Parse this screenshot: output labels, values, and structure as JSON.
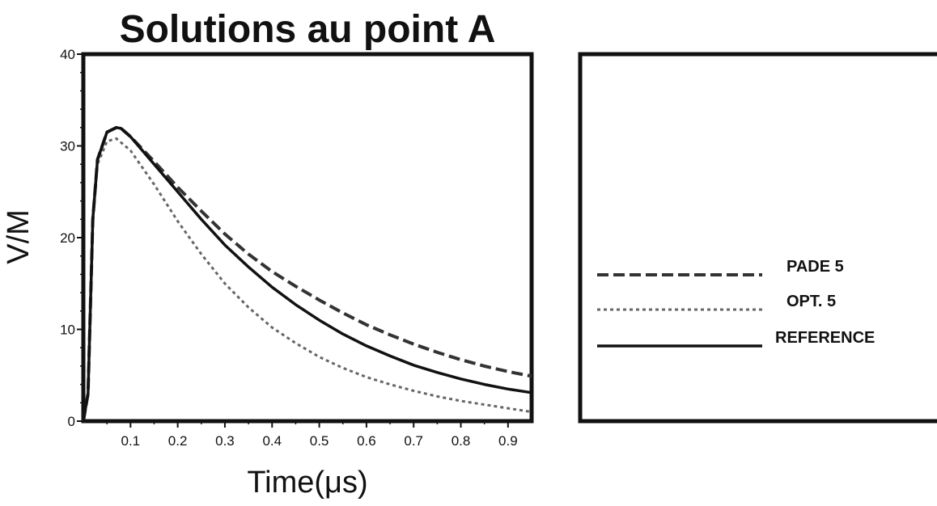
{
  "chart_data": {
    "type": "line",
    "title": "Solutions au point A",
    "xlabel": "Time(μs)",
    "ylabel": "V/M",
    "xlim": [
      0.0,
      0.95
    ],
    "ylim": [
      0,
      40
    ],
    "x_ticks": [
      0.1,
      0.2,
      0.3,
      0.4,
      0.5,
      0.6,
      0.7,
      0.8,
      0.9
    ],
    "x_tick_labels": [
      "0.1",
      "0.2",
      "0.3",
      "0.4",
      "0.5",
      "0.6",
      "0.7",
      "0.8",
      "0.9"
    ],
    "y_ticks": [
      0,
      10,
      20,
      30,
      40
    ],
    "y_tick_labels": [
      "0",
      "10",
      "20",
      "30",
      "40"
    ],
    "grid": false,
    "legend_position": "separate panel, right",
    "series": [
      {
        "name": "PADE 5",
        "style": "dashed",
        "x": [
          0.0,
          0.01,
          0.02,
          0.03,
          0.05,
          0.07,
          0.08,
          0.1,
          0.15,
          0.2,
          0.25,
          0.3,
          0.35,
          0.4,
          0.45,
          0.5,
          0.55,
          0.6,
          0.65,
          0.7,
          0.75,
          0.8,
          0.85,
          0.9,
          0.95
        ],
        "y": [
          0.0,
          3.0,
          22.0,
          28.5,
          31.5,
          32.0,
          31.9,
          31.0,
          28.3,
          25.5,
          22.9,
          20.4,
          18.2,
          16.3,
          14.7,
          13.2,
          11.8,
          10.5,
          9.4,
          8.4,
          7.5,
          6.7,
          6.0,
          5.4,
          4.9
        ]
      },
      {
        "name": "OPT. 5",
        "style": "dotted",
        "x": [
          0.0,
          0.01,
          0.02,
          0.03,
          0.05,
          0.07,
          0.1,
          0.15,
          0.2,
          0.25,
          0.3,
          0.35,
          0.4,
          0.45,
          0.5,
          0.55,
          0.6,
          0.65,
          0.7,
          0.75,
          0.8,
          0.85,
          0.9,
          0.95
        ],
        "y": [
          0.0,
          3.0,
          22.0,
          28.0,
          30.5,
          30.8,
          29.5,
          25.8,
          21.8,
          18.2,
          15.0,
          12.4,
          10.2,
          8.5,
          7.0,
          5.8,
          4.8,
          4.0,
          3.3,
          2.7,
          2.2,
          1.8,
          1.4,
          1.0
        ]
      },
      {
        "name": "REFERENCE",
        "style": "solid",
        "x": [
          0.0,
          0.01,
          0.02,
          0.03,
          0.05,
          0.07,
          0.08,
          0.1,
          0.15,
          0.2,
          0.25,
          0.3,
          0.35,
          0.4,
          0.45,
          0.5,
          0.55,
          0.6,
          0.65,
          0.7,
          0.75,
          0.8,
          0.85,
          0.9,
          0.95
        ],
        "y": [
          0.0,
          3.0,
          22.0,
          28.5,
          31.5,
          32.0,
          31.9,
          31.0,
          28.0,
          25.0,
          22.0,
          19.2,
          16.8,
          14.6,
          12.7,
          11.0,
          9.5,
          8.2,
          7.1,
          6.1,
          5.3,
          4.6,
          4.0,
          3.5,
          3.1
        ]
      }
    ]
  }
}
